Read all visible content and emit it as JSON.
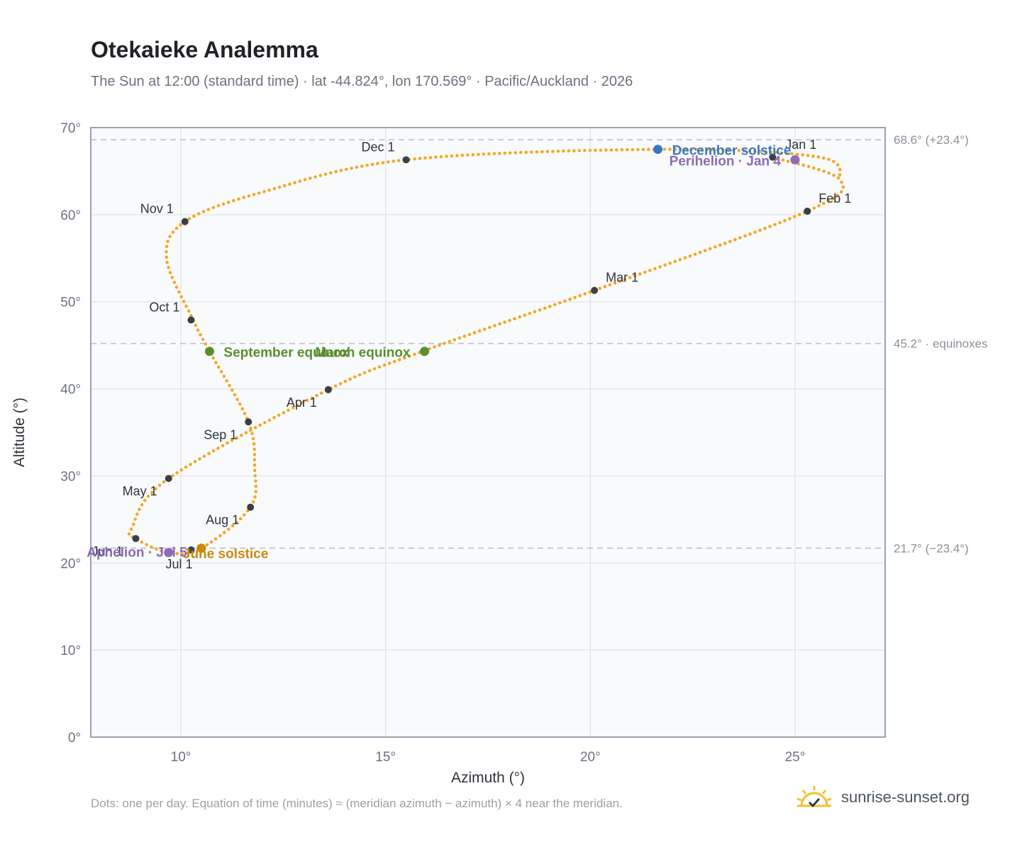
{
  "header": {
    "title": "Otekaieke Analemma",
    "subtitle": "The Sun at 12:00 (standard time) · lat -44.824°, lon 170.569° · Pacific/Auckland · 2026"
  },
  "footer": {
    "note": "Dots: one per day. Equation of time (minutes) ≈ (meridian azimuth − azimuth) × 4 near the meridian.",
    "brand": "sunrise-sunset.org"
  },
  "colors": {
    "curve": "#f5a623",
    "month_marker": "#3a3f47",
    "september_equinox": "#5a8f2e",
    "march_equinox": "#5a8f2e",
    "december_solstice": "#3a78c0",
    "june_solstice": "#c98a10",
    "perihelion": "#8e6bb6",
    "aphelion": "#8e6bb6",
    "reference_line": "#b8bec8",
    "plot_bg": "#f8fafc",
    "grid": "#e3e7ec",
    "frame": "#9aa3af",
    "brand_sun": "#f2c12e"
  },
  "chart_data": {
    "type": "scatter",
    "title": "Otekaieke Analemma",
    "xlabel": "Azimuth (°)",
    "ylabel": "Altitude (°)",
    "xlim": [
      7.8,
      27.2
    ],
    "ylim": [
      0,
      70
    ],
    "x_ticks": [
      {
        "value": 10,
        "label": "10°"
      },
      {
        "value": 15,
        "label": "15°"
      },
      {
        "value": 20,
        "label": "20°"
      },
      {
        "value": 25,
        "label": "25°"
      }
    ],
    "y_ticks": [
      {
        "value": 0,
        "label": "0°"
      },
      {
        "value": 10,
        "label": "10°"
      },
      {
        "value": 20,
        "label": "20°"
      },
      {
        "value": 30,
        "label": "30°"
      },
      {
        "value": 40,
        "label": "40°"
      },
      {
        "value": 50,
        "label": "50°"
      },
      {
        "value": 60,
        "label": "60°"
      },
      {
        "value": 70,
        "label": "70°"
      }
    ],
    "grid": true,
    "reference_lines": [
      {
        "y": 68.6,
        "label": "68.6° (+23.4°)"
      },
      {
        "y": 45.2,
        "label": "45.2° · equinoxes"
      },
      {
        "y": 21.7,
        "label": "21.7° (−23.4°)"
      }
    ],
    "series": [
      {
        "points": [
          {
            "x": 24.45,
            "y": 66.6
          },
          {
            "x": 26.1,
            "y": 64.0
          },
          {
            "x": 25.3,
            "y": 60.4
          },
          {
            "x": 20.1,
            "y": 51.3
          },
          {
            "x": 15.9,
            "y": 44.3
          },
          {
            "x": 13.6,
            "y": 39.9
          },
          {
            "x": 9.7,
            "y": 29.7
          },
          {
            "x": 8.8,
            "y": 24.0
          },
          {
            "x": 8.9,
            "y": 22.8
          },
          {
            "x": 9.7,
            "y": 21.2
          },
          {
            "x": 10.5,
            "y": 21.7
          },
          {
            "x": 11.7,
            "y": 26.4
          },
          {
            "x": 11.8,
            "y": 31.0
          },
          {
            "x": 11.65,
            "y": 36.2
          },
          {
            "x": 10.7,
            "y": 44.3
          },
          {
            "x": 10.3,
            "y": 47.9
          },
          {
            "x": 9.65,
            "y": 55.0
          },
          {
            "x": 10.1,
            "y": 59.2
          },
          {
            "x": 12.0,
            "y": 62.6
          },
          {
            "x": 15.5,
            "y": 66.3
          },
          {
            "x": 21.7,
            "y": 67.5
          },
          {
            "x": 25.6,
            "y": 66.6
          },
          {
            "x": 26.1,
            "y": 64.0
          }
        ]
      }
    ],
    "month_markers": [
      {
        "label": "Jan 1",
        "x": 24.45,
        "y": 66.6
      },
      {
        "label": "Feb 1",
        "x": 25.3,
        "y": 60.4
      },
      {
        "label": "Mar 1",
        "x": 20.1,
        "y": 51.3
      },
      {
        "label": "Apr 1",
        "x": 13.6,
        "y": 39.9
      },
      {
        "label": "May 1",
        "x": 9.7,
        "y": 29.7
      },
      {
        "label": "Jun 1",
        "x": 8.9,
        "y": 22.8
      },
      {
        "label": "Jul 1",
        "x": 10.25,
        "y": 21.5
      },
      {
        "label": "Aug 1",
        "x": 11.7,
        "y": 26.4
      },
      {
        "label": "Sep 1",
        "x": 11.65,
        "y": 36.2
      },
      {
        "label": "Oct 1",
        "x": 10.25,
        "y": 47.9
      },
      {
        "label": "Nov 1",
        "x": 10.1,
        "y": 59.2
      },
      {
        "label": "Dec 1",
        "x": 15.5,
        "y": 66.3
      }
    ],
    "events": [
      {
        "label": "December solstice",
        "x": 21.65,
        "y": 67.5
      },
      {
        "label": "Perihelion · Jan 4",
        "x": 25.0,
        "y": 66.3
      },
      {
        "label": "March equinox",
        "x": 15.95,
        "y": 44.3
      },
      {
        "label": "September equinox",
        "x": 10.7,
        "y": 44.3
      },
      {
        "label": "June solstice",
        "x": 10.5,
        "y": 21.7
      },
      {
        "label": "Aphelion · Jul 5",
        "x": 9.7,
        "y": 21.2
      }
    ]
  }
}
